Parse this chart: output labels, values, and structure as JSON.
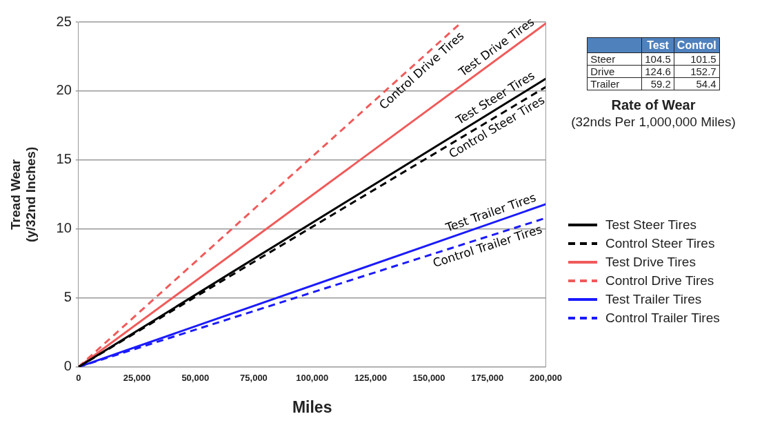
{
  "chart_data": [
    {
      "type": "line",
      "xlabel": "Miles",
      "ylabel": "Tread Wear\n(y/32nd Inches)",
      "xlim": [
        0,
        200000
      ],
      "xticks": [
        0,
        {
          "value": 25000,
          "label": "25,000"
        },
        {
          "value": 50000,
          "label": "50,000"
        },
        {
          "value": 75000,
          "label": "75,000"
        },
        {
          "value": 100000,
          "label": "100,000"
        },
        {
          "value": 125000,
          "label": "125,000"
        },
        {
          "value": 150000,
          "label": "150,000"
        },
        {
          "value": 175000,
          "label": "175,000"
        },
        {
          "value": 200000,
          "label": "200,000"
        }
      ],
      "ylim": [
        0,
        25
      ],
      "yticks": [
        0,
        5,
        10,
        15,
        20,
        25
      ],
      "grid": "y",
      "legend": "right",
      "marker": "none",
      "series": [
        {
          "name": "Test Steer Tires",
          "color": "#000000",
          "line_style": "solid",
          "x": [
            0,
            200000
          ],
          "values": [
            0,
            20.9
          ]
        },
        {
          "name": "Control Steer Tires",
          "color": "#000000",
          "line_style": "dashed",
          "x": [
            0,
            200000
          ],
          "values": [
            0,
            20.3
          ]
        },
        {
          "name": "Test Drive Tires",
          "color": "#f05a5a",
          "line_style": "solid",
          "x": [
            0,
            200000
          ],
          "values": [
            0,
            24.9
          ]
        },
        {
          "name": "Control Drive Tires",
          "color": "#f05a5a",
          "line_style": "dashed",
          "x": [
            0,
            164000
          ],
          "values": [
            0,
            25
          ]
        },
        {
          "name": "Test Trailer Tires",
          "color": "#1a1aff",
          "line_style": "solid",
          "x": [
            0,
            200000
          ],
          "values": [
            0,
            11.8
          ]
        },
        {
          "name": "Control Trailer Tires",
          "color": "#1a1aff",
          "line_style": "dashed",
          "x": [
            0,
            200000
          ],
          "values": [
            0,
            10.8
          ]
        }
      ]
    },
    {
      "type": "other",
      "title": "Rate of Wear",
      "subtitle": "(32nds Per 1,000,000 Miles)",
      "categories": [
        "Steer",
        "Drive",
        "Trailer"
      ],
      "data_labels": true,
      "series": [
        {
          "name": "Test",
          "values": [
            104.5,
            124.6,
            59.2
          ]
        },
        {
          "name": "Control",
          "values": [
            101.5,
            152.7,
            54.4
          ]
        }
      ]
    }
  ]
}
